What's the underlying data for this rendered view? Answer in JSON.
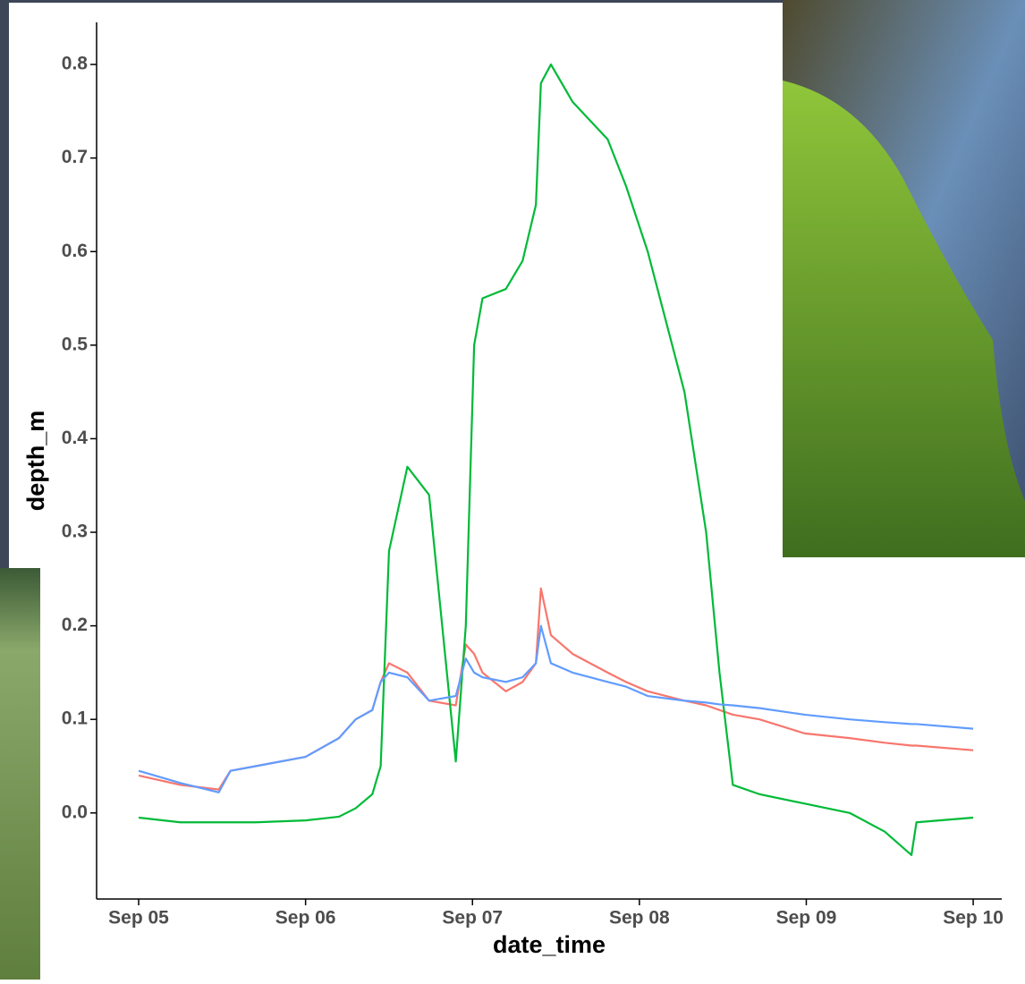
{
  "chart_data": {
    "type": "line",
    "x_label": "date_time",
    "y_label": "depth_m",
    "x": [
      0,
      0.25,
      0.48,
      0.55,
      0.7,
      1.0,
      1.1,
      1.2,
      1.3,
      1.4,
      1.45,
      1.5,
      1.61,
      1.74,
      1.9,
      1.96,
      2.01,
      2.06,
      2.2,
      2.3,
      2.38,
      2.41,
      2.47,
      2.6,
      2.81,
      2.92,
      3.05,
      3.27,
      3.4,
      3.48,
      3.56,
      3.72,
      3.99,
      4.26,
      4.47,
      4.63,
      4.66,
      5.0
    ],
    "series": [
      {
        "color": "#F8766D",
        "values": [
          0.04,
          0.03,
          0.025,
          0.045,
          0.05,
          0.06,
          0.07,
          0.08,
          0.1,
          0.11,
          0.14,
          0.16,
          0.15,
          0.12,
          0.115,
          0.18,
          0.17,
          0.15,
          0.13,
          0.14,
          0.16,
          0.24,
          0.19,
          0.17,
          0.15,
          0.14,
          0.13,
          0.12,
          0.115,
          0.11,
          0.105,
          0.1,
          0.085,
          0.08,
          0.075,
          0.072,
          0.072,
          0.067
        ]
      },
      {
        "color": "#00BA38",
        "values": [
          -0.005,
          -0.01,
          -0.01,
          -0.01,
          -0.01,
          -0.008,
          -0.006,
          -0.004,
          0.005,
          0.02,
          0.05,
          0.28,
          0.37,
          0.34,
          0.055,
          0.2,
          0.5,
          0.55,
          0.56,
          0.59,
          0.65,
          0.78,
          0.8,
          0.76,
          0.72,
          0.67,
          0.6,
          0.45,
          0.3,
          0.15,
          0.03,
          0.02,
          0.01,
          0,
          -0.02,
          -0.045,
          -0.01,
          -0.005
        ]
      },
      {
        "color": "#619CFF",
        "values": [
          0.045,
          0.032,
          0.022,
          0.045,
          0.05,
          0.06,
          0.07,
          0.08,
          0.1,
          0.11,
          0.14,
          0.15,
          0.145,
          0.12,
          0.125,
          0.165,
          0.15,
          0.145,
          0.14,
          0.145,
          0.16,
          0.2,
          0.16,
          0.15,
          0.14,
          0.135,
          0.125,
          0.12,
          0.118,
          0.116,
          0.115,
          0.112,
          0.105,
          0.1,
          0.097,
          0.095,
          0.095,
          0.09
        ]
      }
    ],
    "xlim": [
      -0.252,
      5.171
    ],
    "ylim": [
      -0.092,
      0.845
    ],
    "xticks": [
      {
        "value": 0,
        "label": "Sep 05"
      },
      {
        "value": 1,
        "label": "Sep 06"
      },
      {
        "value": 2,
        "label": "Sep 07"
      },
      {
        "value": 3,
        "label": "Sep 08"
      },
      {
        "value": 4,
        "label": "Sep 09"
      },
      {
        "value": 5,
        "label": "Sep 10"
      }
    ],
    "yticks": [
      {
        "value": 0,
        "label": "0.0"
      },
      0.1,
      0.2,
      0.3,
      0.4,
      0.5,
      0.6,
      0.7,
      0.8
    ],
    "grid": false
  }
}
